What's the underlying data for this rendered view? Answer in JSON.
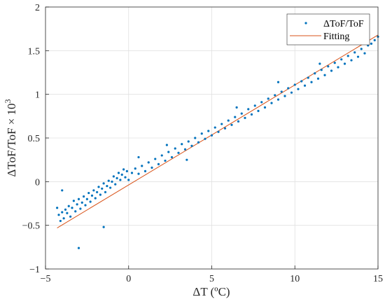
{
  "chart_data": {
    "type": "scatter",
    "xlabel": "ΔT (ºC)",
    "ylabel": "ΔToF/ToF × 10",
    "ylabel_superscript": "3",
    "xlim": [
      -5,
      15
    ],
    "ylim": [
      -1,
      2
    ],
    "xticks": [
      "−5",
      "0",
      "5",
      "10",
      "15"
    ],
    "xtick_values": [
      -5,
      0,
      5,
      10,
      15
    ],
    "yticks": [
      "−1",
      "−0.5",
      "0",
      "0.5",
      "1",
      "1.5",
      "2"
    ],
    "ytick_values": [
      -1,
      -0.5,
      0,
      0.5,
      1,
      1.5,
      2
    ],
    "grid": true,
    "legend_position": "top-right",
    "series": [
      {
        "name": "ΔToF/ToF",
        "kind": "scatter",
        "color": "#0072BD",
        "points": [
          [
            -4.3,
            -0.3
          ],
          [
            -4.2,
            -0.38
          ],
          [
            -4.1,
            -0.45
          ],
          [
            -4.0,
            -0.35
          ],
          [
            -3.9,
            -0.42
          ],
          [
            -3.8,
            -0.32
          ],
          [
            -3.7,
            -0.36
          ],
          [
            -3.6,
            -0.28
          ],
          [
            -3.5,
            -0.4
          ],
          [
            -3.4,
            -0.3
          ],
          [
            -3.3,
            -0.22
          ],
          [
            -3.2,
            -0.34
          ],
          [
            -3.1,
            -0.26
          ],
          [
            -3.0,
            -0.2
          ],
          [
            -2.9,
            -0.31
          ],
          [
            -2.8,
            -0.24
          ],
          [
            -2.7,
            -0.17
          ],
          [
            -2.6,
            -0.27
          ],
          [
            -2.5,
            -0.2
          ],
          [
            -2.4,
            -0.13
          ],
          [
            -2.3,
            -0.23
          ],
          [
            -2.2,
            -0.16
          ],
          [
            -2.1,
            -0.1
          ],
          [
            -2.0,
            -0.19
          ],
          [
            -1.9,
            -0.12
          ],
          [
            -1.8,
            -0.06
          ],
          [
            -1.7,
            -0.15
          ],
          [
            -1.6,
            -0.08
          ],
          [
            -1.5,
            -0.02
          ],
          [
            -1.4,
            -0.12
          ],
          [
            -1.3,
            -0.05
          ],
          [
            -1.2,
            0.01
          ],
          [
            -1.1,
            -0.07
          ],
          [
            -1.0,
            0.0
          ],
          [
            -0.9,
            0.06
          ],
          [
            -0.8,
            -0.03
          ],
          [
            -0.7,
            0.04
          ],
          [
            -0.6,
            0.1
          ],
          [
            -0.5,
            0.02
          ],
          [
            -0.4,
            0.08
          ],
          [
            -0.3,
            0.14
          ],
          [
            -0.2,
            0.05
          ],
          [
            -0.1,
            0.12
          ],
          [
            0.0,
            0.02
          ],
          [
            0.2,
            0.1
          ],
          [
            0.4,
            0.15
          ],
          [
            0.6,
            0.09
          ],
          [
            0.8,
            0.18
          ],
          [
            1.0,
            0.12
          ],
          [
            1.2,
            0.22
          ],
          [
            1.4,
            0.16
          ],
          [
            1.6,
            0.26
          ],
          [
            1.8,
            0.2
          ],
          [
            2.0,
            0.3
          ],
          [
            2.2,
            0.24
          ],
          [
            2.4,
            0.34
          ],
          [
            2.6,
            0.28
          ],
          [
            2.8,
            0.38
          ],
          [
            3.0,
            0.33
          ],
          [
            3.2,
            0.43
          ],
          [
            3.4,
            0.37
          ],
          [
            3.6,
            0.46
          ],
          [
            3.8,
            0.41
          ],
          [
            4.0,
            0.5
          ],
          [
            4.2,
            0.45
          ],
          [
            4.4,
            0.55
          ],
          [
            4.6,
            0.49
          ],
          [
            4.8,
            0.58
          ],
          [
            5.0,
            0.53
          ],
          [
            5.2,
            0.62
          ],
          [
            5.4,
            0.57
          ],
          [
            5.6,
            0.66
          ],
          [
            5.8,
            0.61
          ],
          [
            6.0,
            0.7
          ],
          [
            6.2,
            0.65
          ],
          [
            6.4,
            0.74
          ],
          [
            6.6,
            0.69
          ],
          [
            6.8,
            0.78
          ],
          [
            7.0,
            0.73
          ],
          [
            7.2,
            0.83
          ],
          [
            7.4,
            0.77
          ],
          [
            7.6,
            0.87
          ],
          [
            7.8,
            0.81
          ],
          [
            8.0,
            0.91
          ],
          [
            8.2,
            0.85
          ],
          [
            8.4,
            0.95
          ],
          [
            8.6,
            0.9
          ],
          [
            8.8,
            0.99
          ],
          [
            9.0,
            0.94
          ],
          [
            9.2,
            1.03
          ],
          [
            9.4,
            0.98
          ],
          [
            9.6,
            1.07
          ],
          [
            9.8,
            1.02
          ],
          [
            10.0,
            1.11
          ],
          [
            10.2,
            1.06
          ],
          [
            10.4,
            1.15
          ],
          [
            10.6,
            1.1
          ],
          [
            10.8,
            1.19
          ],
          [
            11.0,
            1.14
          ],
          [
            11.2,
            1.24
          ],
          [
            11.4,
            1.18
          ],
          [
            11.6,
            1.28
          ],
          [
            11.8,
            1.22
          ],
          [
            12.0,
            1.32
          ],
          [
            12.2,
            1.27
          ],
          [
            12.4,
            1.36
          ],
          [
            12.6,
            1.31
          ],
          [
            12.8,
            1.4
          ],
          [
            13.0,
            1.35
          ],
          [
            13.2,
            1.44
          ],
          [
            13.4,
            1.39
          ],
          [
            13.6,
            1.48
          ],
          [
            13.8,
            1.43
          ],
          [
            14.0,
            1.52
          ],
          [
            14.2,
            1.47
          ],
          [
            14.4,
            1.56
          ],
          [
            14.6,
            1.58
          ],
          [
            14.8,
            1.62
          ],
          [
            15.0,
            1.66
          ],
          [
            -3.0,
            -0.76
          ],
          [
            -1.5,
            -0.52
          ],
          [
            0.6,
            0.28
          ],
          [
            3.5,
            0.25
          ],
          [
            9.0,
            1.14
          ],
          [
            13.5,
            1.6
          ],
          [
            -4.0,
            -0.1
          ],
          [
            2.3,
            0.42
          ],
          [
            6.5,
            0.85
          ],
          [
            11.5,
            1.35
          ]
        ]
      },
      {
        "name": "Fitting",
        "kind": "line",
        "color": "#D95319",
        "x": [
          -4.3,
          15
        ],
        "y": [
          -0.53,
          1.68
        ]
      }
    ]
  }
}
